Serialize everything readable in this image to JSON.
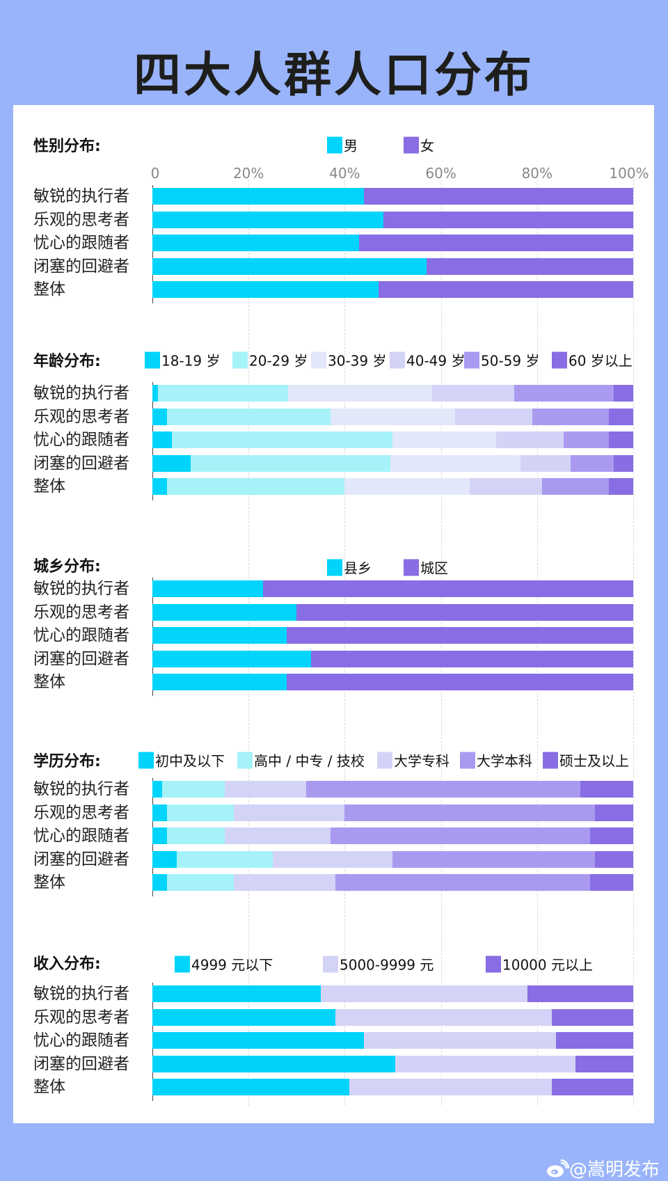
{
  "title": "四大人群人口分布",
  "watermark": "@嵩明发布",
  "colors": {
    "background": "#99b4fa",
    "cyan": "#00d4fb",
    "light_cyan": "#a6f2f9",
    "pale_lavender": "#e3e7fa",
    "light_lavender": "#d3d3f7",
    "lavender": "#a99af0",
    "purple": "#886de4"
  },
  "axis_ticks": [
    "0",
    "20%",
    "40%",
    "60%",
    "80%",
    "100%"
  ],
  "chart_data": [
    {
      "type": "bar",
      "stacked": true,
      "orientation": "horizontal",
      "title": "性别分布:",
      "categories": [
        "敏锐的执行者",
        "乐观的思考者",
        "忧心的跟随者",
        "闭塞的回避者",
        "整体"
      ],
      "xlim": [
        0,
        100
      ],
      "grid": true,
      "legend": "top",
      "series": [
        {
          "name": "男",
          "color": "#00d4fb",
          "values": [
            44,
            48,
            43,
            57,
            47
          ]
        },
        {
          "name": "女",
          "color": "#886de4",
          "values": [
            56,
            52,
            57,
            43,
            53
          ]
        }
      ]
    },
    {
      "type": "bar",
      "stacked": true,
      "orientation": "horizontal",
      "title": "年龄分布:",
      "categories": [
        "敏锐的执行者",
        "乐观的思考者",
        "忧心的跟随者",
        "闭塞的回避者",
        "整体"
      ],
      "xlim": [
        0,
        100
      ],
      "grid": true,
      "legend": "top",
      "series": [
        {
          "name": "18-19 岁",
          "color": "#00d4fb",
          "values": [
            1.2,
            3,
            4,
            8,
            3
          ]
        },
        {
          "name": "20-29 岁",
          "color": "#a6f2f9",
          "values": [
            27,
            34,
            46,
            41.5,
            37
          ]
        },
        {
          "name": "30-39 岁",
          "color": "#e3e7fa",
          "values": [
            30,
            26,
            21.5,
            27,
            26
          ]
        },
        {
          "name": "40-49 岁",
          "color": "#d3d3f7",
          "values": [
            17,
            16,
            14,
            10.5,
            15
          ]
        },
        {
          "name": "50-59 岁",
          "color": "#a99af0",
          "values": [
            20.8,
            16,
            9.5,
            9,
            14
          ]
        },
        {
          "name": "60 岁以上",
          "color": "#886de4",
          "values": [
            4,
            5,
            5,
            4,
            5
          ]
        }
      ]
    },
    {
      "type": "bar",
      "stacked": true,
      "orientation": "horizontal",
      "title": "城乡分布:",
      "categories": [
        "敏锐的执行者",
        "乐观的思考者",
        "忧心的跟随者",
        "闭塞的回避者",
        "整体"
      ],
      "xlim": [
        0,
        100
      ],
      "grid": true,
      "legend": "top",
      "series": [
        {
          "name": "县乡",
          "color": "#00d4fb",
          "values": [
            23,
            30,
            28,
            33,
            28
          ]
        },
        {
          "name": "城区",
          "color": "#886de4",
          "values": [
            77,
            70,
            72,
            67,
            72
          ]
        }
      ]
    },
    {
      "type": "bar",
      "stacked": true,
      "orientation": "horizontal",
      "title": "学历分布:",
      "categories": [
        "敏锐的执行者",
        "乐观的思考者",
        "忧心的跟随者",
        "闭塞的回避者",
        "整体"
      ],
      "xlim": [
        0,
        100
      ],
      "grid": true,
      "legend": "top",
      "series": [
        {
          "name": "初中及以下",
          "color": "#00d4fb",
          "values": [
            2,
            3,
            3,
            5,
            3
          ]
        },
        {
          "name": "高中 / 中专 / 技校",
          "color": "#a6f2f9",
          "values": [
            13,
            14,
            12,
            20,
            14
          ]
        },
        {
          "name": "大学专科",
          "color": "#d3d3f7",
          "values": [
            17,
            23,
            22,
            25,
            21
          ]
        },
        {
          "name": "大学本科",
          "color": "#a99af0",
          "values": [
            57,
            52,
            54,
            42,
            53
          ]
        },
        {
          "name": "硕士及以上",
          "color": "#886de4",
          "values": [
            11,
            8,
            9,
            8,
            9
          ]
        }
      ]
    },
    {
      "type": "bar",
      "stacked": true,
      "orientation": "horizontal",
      "title": "收入分布:",
      "categories": [
        "敏锐的执行者",
        "乐观的思考者",
        "忧心的跟随者",
        "闭塞的回避者",
        "整体"
      ],
      "xlim": [
        0,
        100
      ],
      "grid": true,
      "legend": "top",
      "series": [
        {
          "name": "4999 元以下",
          "color": "#00d4fb",
          "values": [
            35,
            38,
            44,
            50.5,
            41
          ]
        },
        {
          "name": "5000-9999 元",
          "color": "#d3d3f7",
          "values": [
            43,
            45,
            40,
            37.5,
            42
          ]
        },
        {
          "name": "10000 元以上",
          "color": "#886de4",
          "values": [
            22,
            17,
            16,
            12,
            17
          ]
        }
      ]
    }
  ]
}
